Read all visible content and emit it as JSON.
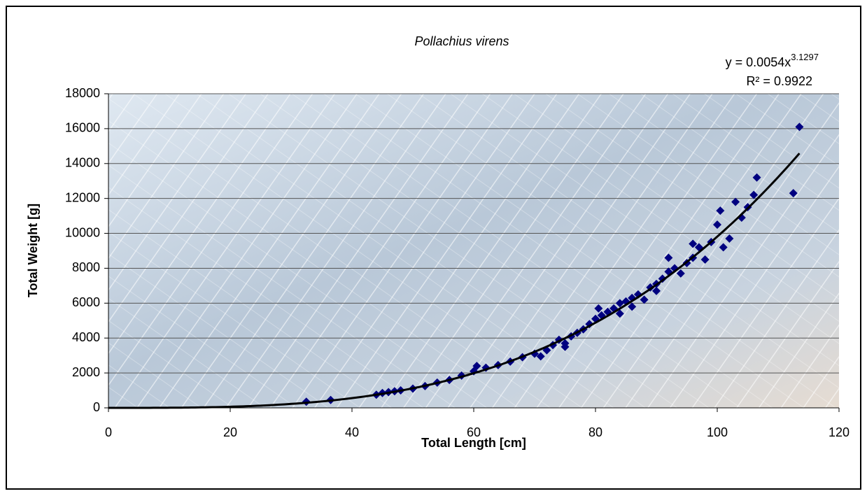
{
  "chart_data": {
    "type": "scatter",
    "title": "Pollachius virens",
    "x_label": "Total Length [cm]",
    "y_label": "Total Weight [g]",
    "xlim": [
      0,
      120
    ],
    "xticks": [
      0,
      20,
      40,
      60,
      80,
      100,
      120
    ],
    "ylim": [
      0,
      18000
    ],
    "yticks": [
      0,
      2000,
      4000,
      6000,
      8000,
      10000,
      12000,
      14000,
      16000,
      18000
    ],
    "grid": true,
    "color": "#000080",
    "x": [
      32.5,
      36.5,
      44,
      45,
      46,
      47,
      48,
      50,
      52,
      54,
      56,
      58,
      60,
      60.5,
      62,
      64,
      66,
      68,
      70,
      71,
      72,
      73,
      74,
      75,
      76,
      77,
      78,
      79,
      80,
      80.5,
      81,
      82,
      83,
      84,
      85,
      86,
      87,
      88,
      89,
      90,
      91,
      92,
      93,
      94,
      95,
      96,
      97,
      98,
      99,
      100,
      100.5,
      101,
      102,
      103,
      104,
      105,
      106,
      106.5,
      112.5,
      113.5,
      86,
      92,
      75,
      84,
      90,
      96
    ],
    "values": [
      350,
      450,
      750,
      850,
      900,
      950,
      1000,
      1100,
      1250,
      1450,
      1600,
      1850,
      2100,
      2400,
      2300,
      2450,
      2650,
      2900,
      3100,
      2950,
      3300,
      3600,
      3900,
      3700,
      4100,
      4300,
      4500,
      4800,
      5100,
      5700,
      5300,
      5500,
      5700,
      5400,
      6100,
      6300,
      6500,
      6200,
      6900,
      7100,
      7400,
      7800,
      8000,
      7700,
      8300,
      8600,
      9200,
      8500,
      9500,
      10500,
      11300,
      9200,
      9700,
      11800,
      10900,
      11500,
      12200,
      13200,
      12300,
      16100,
      5800,
      8600,
      3500,
      6000,
      6700,
      9400
    ],
    "trendline": {
      "type": "power",
      "coefficient": 0.0054,
      "exponent": 3.1297,
      "x_range": [
        0,
        113.5
      ],
      "color": "#000000",
      "equation_label": "y = 0.0054x",
      "equation_exponent": "3.1297",
      "r2_label": "R² = 0.9922"
    }
  }
}
